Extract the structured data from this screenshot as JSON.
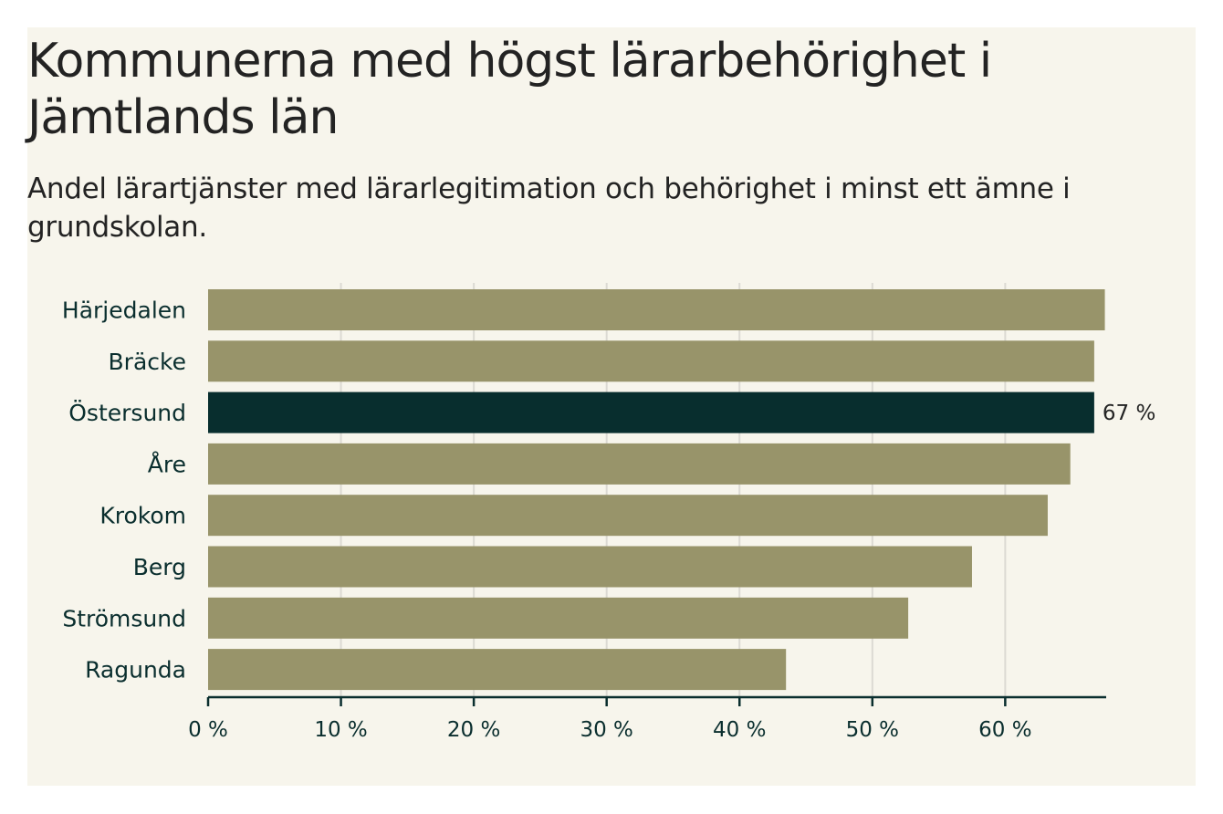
{
  "title": "Kommunerna med högst lärarbehörighet i Jämtlands län",
  "subtitle": "Andel lärartjänster med lärarlegitimation och behörighet i minst ett ämne i grundskolan.",
  "colors": {
    "background": "#f7f5ec",
    "bar": "#98946a",
    "highlight": "#082e2e",
    "grid": "#dcdad3",
    "axis": "#0a2e2e",
    "text": "#232323"
  },
  "chart_data": {
    "type": "bar",
    "orientation": "horizontal",
    "title": "Kommunerna med högst lärarbehörighet i Jämtlands län",
    "subtitle": "Andel lärartjänster med lärarlegitimation och behörighet i minst ett ämne i grundskolan.",
    "categories": [
      "Härjedalen",
      "Bräcke",
      "Östersund",
      "Åre",
      "Krokom",
      "Berg",
      "Strömsund",
      "Ragunda"
    ],
    "values": [
      67.5,
      66.7,
      66.7,
      64.9,
      63.2,
      57.5,
      52.7,
      43.5
    ],
    "highlight": "Östersund",
    "highlight_label": "67 %",
    "xlim": [
      0,
      67.6
    ],
    "x_ticks": [
      0,
      10,
      20,
      30,
      40,
      50,
      60
    ],
    "x_tick_labels": [
      "0 %",
      "10 %",
      "20 %",
      "30 %",
      "40 %",
      "50 %",
      "60 %"
    ],
    "grid": true,
    "legend": "none"
  }
}
